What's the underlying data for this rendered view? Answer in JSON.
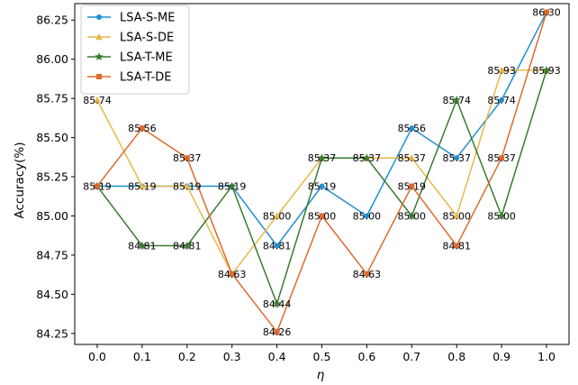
{
  "chart_data": {
    "type": "line",
    "x": [
      0.0,
      0.1,
      0.2,
      0.3,
      0.4,
      0.5,
      0.6,
      0.7,
      0.8,
      0.9,
      1.0
    ],
    "x_tick_labels": [
      "0.0",
      "0.1",
      "0.2",
      "0.3",
      "0.4",
      "0.5",
      "0.6",
      "0.7",
      "0.8",
      "0.9",
      "1.0"
    ],
    "xlabel": "η",
    "ylabel": "Accuracy(%)",
    "y_ticks": [
      84.25,
      84.5,
      84.75,
      85.0,
      85.25,
      85.5,
      85.75,
      86.0,
      86.25
    ],
    "y_tick_labels": [
      "84.25",
      "84.50",
      "84.75",
      "85.00",
      "85.25",
      "85.50",
      "85.75",
      "86.00",
      "86.25"
    ],
    "xlim": [
      -0.05,
      1.05
    ],
    "ylim": [
      84.18,
      86.355
    ],
    "grid": false,
    "legend_position": "top-left",
    "series": [
      {
        "name": "LSA-S-ME",
        "color": "#1f8fd0",
        "marker": "circle",
        "values": [
          85.19,
          85.19,
          85.19,
          85.19,
          84.81,
          85.19,
          85.0,
          85.56,
          85.37,
          85.74,
          86.3
        ],
        "labels": [
          "85.19",
          "85.19",
          "85.19",
          "85.19",
          "84.81",
          "85.19",
          "85.00",
          "85.56",
          "85.37",
          "85.74",
          "86.30"
        ],
        "label_index": [
          false,
          false,
          true,
          true,
          true,
          true,
          true,
          true,
          true,
          true,
          true
        ]
      },
      {
        "name": "LSA-S-DE",
        "color": "#e8b84a",
        "marker": "triangle",
        "values": [
          85.74,
          85.19,
          85.19,
          84.63,
          85.0,
          85.37,
          85.37,
          85.37,
          85.0,
          85.93,
          85.93
        ],
        "labels": [
          "85.74",
          "85.19",
          "85.19",
          "84.63",
          "85.00",
          "85.37",
          "85.37",
          "85.37",
          "85.00",
          "85.93",
          "85.93"
        ],
        "label_index": [
          true,
          true,
          false,
          false,
          true,
          false,
          false,
          true,
          true,
          true,
          true
        ]
      },
      {
        "name": "LSA-T-ME",
        "color": "#3a7a30",
        "marker": "star",
        "values": [
          85.19,
          84.81,
          84.81,
          85.19,
          84.44,
          85.37,
          85.37,
          85.0,
          85.74,
          85.0,
          85.93
        ],
        "labels": [
          "85.19",
          "84.81",
          "84.81",
          "85.19",
          "84.44",
          "85.37",
          "85.37",
          "85.00",
          "85.74",
          "85.00",
          "85.93"
        ],
        "label_index": [
          true,
          true,
          true,
          false,
          true,
          true,
          true,
          true,
          true,
          true,
          false
        ]
      },
      {
        "name": "LSA-T-DE",
        "color": "#de6a2c",
        "marker": "square",
        "values": [
          85.19,
          85.56,
          85.37,
          84.63,
          84.26,
          85.0,
          84.63,
          85.19,
          84.81,
          85.37,
          86.3
        ],
        "labels": [
          "85.19",
          "85.56",
          "85.37",
          "84.63",
          "84.26",
          "85.00",
          "84.63",
          "85.19",
          "84.81",
          "85.37",
          "86.30"
        ],
        "label_index": [
          false,
          true,
          true,
          true,
          true,
          true,
          true,
          true,
          true,
          true,
          false
        ]
      }
    ]
  }
}
